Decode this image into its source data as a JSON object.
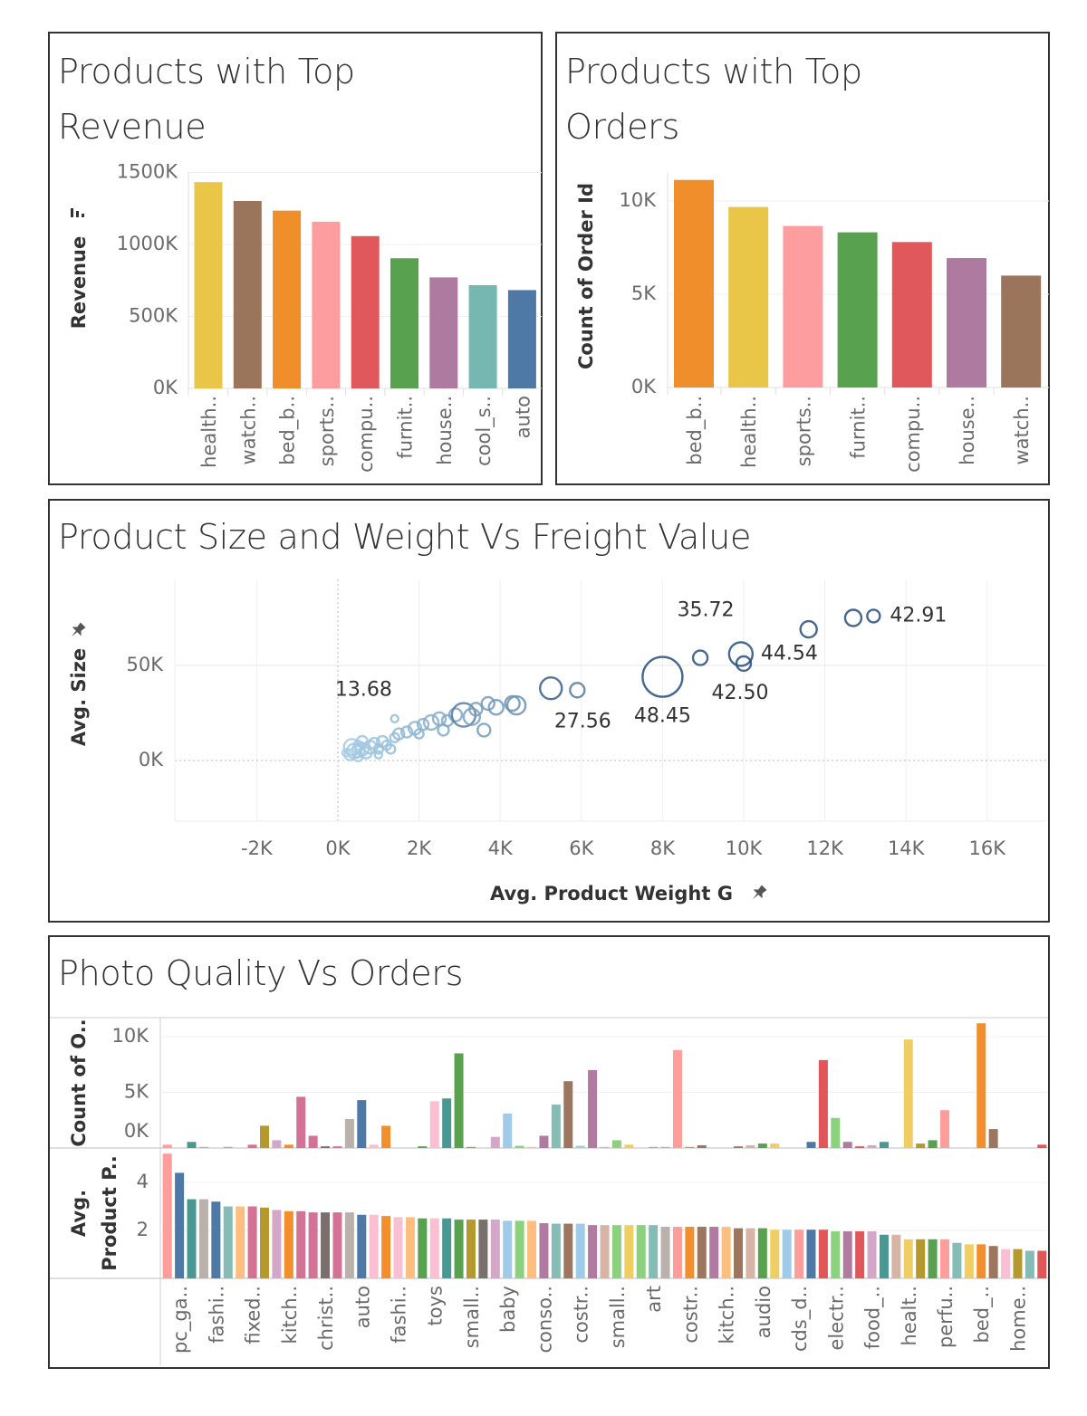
{
  "panels": {
    "revenue_title": "Products with Top Revenue",
    "orders_title": "Products with Top Orders",
    "scatter_title": "Product Size and Weight Vs Freight Value",
    "photo_title": "Photo Quality Vs Orders"
  },
  "icons": {
    "sort": "sort-descending-icon",
    "pin": "pin-icon"
  },
  "chart_data": [
    {
      "type": "bar",
      "title": "Products with Top Revenue",
      "ylabel": "Revenue",
      "categories": [
        "health..",
        "watch..",
        "bed_b..",
        "sports..",
        "compu..",
        "furnit..",
        "house..",
        "cool_s..",
        "auto"
      ],
      "values": [
        1433000,
        1302000,
        1235000,
        1158000,
        1058000,
        904000,
        771000,
        717000,
        683000
      ],
      "colors": [
        "#e9c548",
        "#9a755c",
        "#f18e2c",
        "#fd9da0",
        "#e0575c",
        "#58a14e",
        "#af7aa0",
        "#76b7b1",
        "#4e78a6"
      ],
      "yticks": [
        {
          "v": 0,
          "t": "0K"
        },
        {
          "v": 500000,
          "t": "500K"
        },
        {
          "v": 1000000,
          "t": "1000K"
        },
        {
          "v": 1500000,
          "t": "1500K"
        }
      ],
      "ylim": [
        0,
        1500000
      ],
      "grid": true
    },
    {
      "type": "bar",
      "title": "Products with Top Orders",
      "ylabel": "Count of Order Id",
      "categories": [
        "bed_b..",
        "health..",
        "sports..",
        "furnit..",
        "compu..",
        "house..",
        "watch.."
      ],
      "values": [
        11130,
        9680,
        8660,
        8320,
        7800,
        6940,
        6000
      ],
      "colors": [
        "#f18e2c",
        "#e9c548",
        "#fd9da0",
        "#58a14e",
        "#e0575c",
        "#af7aa0",
        "#9a755c"
      ],
      "yticks": [
        {
          "v": 0,
          "t": "0K"
        },
        {
          "v": 5000,
          "t": "5K"
        },
        {
          "v": 10000,
          "t": "10K"
        }
      ],
      "ylim": [
        0,
        11500
      ],
      "grid": true
    },
    {
      "type": "scatter",
      "title": "Product Size and Weight Vs Freight Value",
      "xlabel": "Avg. Product Weight G",
      "ylabel": "Avg. Size",
      "xlim": [
        -4000,
        17500
      ],
      "ylim": [
        -32000,
        95000
      ],
      "xticks": [
        {
          "v": -2000,
          "t": "-2K"
        },
        {
          "v": 0,
          "t": "0K"
        },
        {
          "v": 2000,
          "t": "2K"
        },
        {
          "v": 4000,
          "t": "4K"
        },
        {
          "v": 6000,
          "t": "6K"
        },
        {
          "v": 8000,
          "t": "8K"
        },
        {
          "v": 10000,
          "t": "10K"
        },
        {
          "v": 12000,
          "t": "12K"
        },
        {
          "v": 14000,
          "t": "14K"
        },
        {
          "v": 16000,
          "t": "16K"
        }
      ],
      "yticks": [
        {
          "v": 0,
          "t": "0K"
        },
        {
          "v": 50000,
          "t": "50K"
        }
      ],
      "grid": true,
      "points": [
        {
          "x": 8000,
          "y": 44000,
          "size": 22,
          "label": "48.45"
        },
        {
          "x": 8930,
          "y": 54000,
          "size": 8,
          "label": "35.72"
        },
        {
          "x": 9930,
          "y": 56000,
          "size": 13,
          "label": "44.54"
        },
        {
          "x": 10000,
          "y": 51000,
          "size": 8,
          "label": "42.50"
        },
        {
          "x": 13200,
          "y": 76000,
          "size": 7,
          "label": "42.91"
        },
        {
          "x": 5900,
          "y": 37000,
          "size": 8,
          "label": "27.56"
        },
        {
          "x": 500,
          "y": 5000,
          "size": 7,
          "label": "13.68"
        },
        {
          "x": 11600,
          "y": 69000,
          "size": 9
        },
        {
          "x": 12700,
          "y": 75000,
          "size": 9
        },
        {
          "x": 5250,
          "y": 38000,
          "size": 12
        },
        {
          "x": 4400,
          "y": 29000,
          "size": 10
        },
        {
          "x": 300,
          "y": 3000,
          "size": 6
        },
        {
          "x": 400,
          "y": 5000,
          "size": 8
        },
        {
          "x": 500,
          "y": 2000,
          "size": 5
        },
        {
          "x": 600,
          "y": 6000,
          "size": 7
        },
        {
          "x": 700,
          "y": 4000,
          "size": 6
        },
        {
          "x": 500,
          "y": 8000,
          "size": 5
        },
        {
          "x": 800,
          "y": 7000,
          "size": 7
        },
        {
          "x": 900,
          "y": 9000,
          "size": 6
        },
        {
          "x": 1000,
          "y": 6000,
          "size": 5
        },
        {
          "x": 1100,
          "y": 10000,
          "size": 6
        },
        {
          "x": 350,
          "y": 7000,
          "size": 9
        },
        {
          "x": 600,
          "y": 10000,
          "size": 6
        },
        {
          "x": 1200,
          "y": 8000,
          "size": 5
        },
        {
          "x": 1400,
          "y": 12000,
          "size": 5
        },
        {
          "x": 1500,
          "y": 14000,
          "size": 6
        },
        {
          "x": 1700,
          "y": 15000,
          "size": 6
        },
        {
          "x": 1900,
          "y": 17000,
          "size": 7
        },
        {
          "x": 2100,
          "y": 19000,
          "size": 6
        },
        {
          "x": 2300,
          "y": 20000,
          "size": 8
        },
        {
          "x": 2500,
          "y": 22000,
          "size": 7
        },
        {
          "x": 2700,
          "y": 21000,
          "size": 6
        },
        {
          "x": 2900,
          "y": 24000,
          "size": 7
        },
        {
          "x": 3100,
          "y": 24000,
          "size": 13
        },
        {
          "x": 3300,
          "y": 23000,
          "size": 9
        },
        {
          "x": 3400,
          "y": 27000,
          "size": 7
        },
        {
          "x": 3700,
          "y": 30000,
          "size": 7
        },
        {
          "x": 3900,
          "y": 28000,
          "size": 8
        },
        {
          "x": 3600,
          "y": 16000,
          "size": 7
        },
        {
          "x": 4300,
          "y": 30000,
          "size": 8
        },
        {
          "x": 1400,
          "y": 22000,
          "size": 4
        },
        {
          "x": 2000,
          "y": 14000,
          "size": 5
        },
        {
          "x": 2600,
          "y": 16000,
          "size": 6
        },
        {
          "x": 200,
          "y": 4000,
          "size": 4
        },
        {
          "x": 1000,
          "y": 3000,
          "size": 4
        },
        {
          "x": 1300,
          "y": 6000,
          "size": 5
        }
      ]
    },
    {
      "type": "bar",
      "title": "Photo Quality Vs Orders",
      "panes": [
        {
          "ylabel": "Count of O..",
          "yticks": [
            {
              "v": 0,
              "t": "0K"
            },
            {
              "v": 5000,
              "t": "5K"
            },
            {
              "v": 10000,
              "t": "10K"
            }
          ],
          "ylim": [
            0,
            11700
          ],
          "values": [
            300,
            0,
            550,
            100,
            0,
            100,
            0,
            300,
            2000,
            700,
            300,
            4600,
            1100,
            150,
            150,
            2600,
            4300,
            300,
            2000,
            0,
            0,
            150,
            4200,
            4450,
            8500,
            100,
            0,
            1000,
            3100,
            200,
            100,
            1100,
            3900,
            6000,
            200,
            7000,
            100,
            700,
            300,
            0,
            100,
            100,
            8800,
            100,
            250,
            0,
            0,
            150,
            250,
            400,
            400,
            0,
            0,
            550,
            7900,
            2700,
            550,
            150,
            250,
            550,
            0,
            9750,
            400,
            700,
            3400,
            0,
            0,
            11200,
            1700,
            0,
            0,
            0,
            300
          ]
        },
        {
          "ylabel_lines": [
            "Avg.",
            "Product P.."
          ],
          "yticks": [
            {
              "v": 2,
              "t": "2"
            },
            {
              "v": 4,
              "t": "4"
            }
          ],
          "ylim": [
            0,
            5.4
          ],
          "values": [
            5.2,
            4.4,
            3.3,
            3.3,
            3.2,
            3.0,
            3.0,
            3.0,
            2.95,
            2.85,
            2.8,
            2.8,
            2.75,
            2.75,
            2.75,
            2.75,
            2.65,
            2.65,
            2.6,
            2.55,
            2.55,
            2.5,
            2.5,
            2.5,
            2.45,
            2.45,
            2.45,
            2.45,
            2.4,
            2.4,
            2.4,
            2.3,
            2.28,
            2.28,
            2.28,
            2.22,
            2.22,
            2.22,
            2.22,
            2.22,
            2.22,
            2.15,
            2.15,
            2.15,
            2.15,
            2.15,
            2.15,
            2.09,
            2.09,
            2.09,
            2.03,
            2.03,
            2.03,
            2.03,
            2.03,
            1.96,
            1.96,
            1.96,
            1.96,
            1.82,
            1.82,
            1.63,
            1.63,
            1.63,
            1.63,
            1.48,
            1.42,
            1.42,
            1.35,
            1.22,
            1.22,
            1.15,
            1.15
          ]
        }
      ],
      "colors": [
        "#ff9d9a",
        "#4e79a7",
        "#499894",
        "#bab0ac",
        "#4e79a7",
        "#86bcb6",
        "#ffbe7d",
        "#d37295",
        "#b6992d",
        "#d4a6c8",
        "#f28e2b",
        "#d37295",
        "#d37295",
        "#79706e",
        "#d37295",
        "#bab0ac",
        "#4e79a7",
        "#fabfd2",
        "#f28e2b",
        "#fabfd2",
        "#ffbe7d",
        "#59a14f",
        "#fabfd2",
        "#499894",
        "#59a14f",
        "#b6992d",
        "#79706e",
        "#d4a6c8",
        "#a0cbe8",
        "#8cd17d",
        "#ffbe7d",
        "#b07aa1",
        "#86bcb6",
        "#9d7660",
        "#a0cbe8",
        "#b07aa1",
        "#d7b5a6",
        "#8cd17d",
        "#f1ce63",
        "#8cd17d",
        "#86bcb6",
        "#bab0ac",
        "#ff9d9a",
        "#f28e2b",
        "#9d7660",
        "#b07aa1",
        "#ffbe7d",
        "#9d7660",
        "#d7b5a6",
        "#59a14f",
        "#f1ce63",
        "#a0cbe8",
        "#ff9d9a",
        "#4e79a7",
        "#e15759",
        "#8cd17d",
        "#b07aa1",
        "#e15759",
        "#d4a6c8",
        "#499894",
        "#d7b5a6",
        "#f1ce63",
        "#b6992d",
        "#59a14f",
        "#ff9d9a",
        "#86bcb6",
        "#f1ce63",
        "#f28e2b",
        "#9d7660",
        "#fabfd2",
        "#b6992d",
        "#86bcb6",
        "#e15759"
      ],
      "category_labels": [
        "pc_ga..",
        "fashi..",
        "fixed..",
        "kitch..",
        "christ..",
        "auto",
        "fashi..",
        "toys",
        "small..",
        "baby",
        "conso..",
        "costr..",
        "small..",
        "art",
        "costr..",
        "kitch..",
        "audio",
        "cds_d..",
        "electr..",
        "food_..",
        "healt..",
        "perfu..",
        "bed_..",
        "home.."
      ],
      "grid": true
    }
  ]
}
